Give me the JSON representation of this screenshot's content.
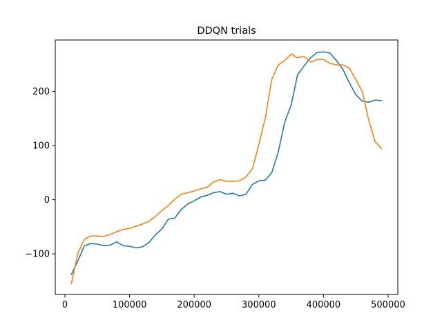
{
  "chart_data": {
    "type": "line",
    "title": "DDQN trials",
    "xlabel": "",
    "ylabel": "",
    "xlim": [
      -15000,
      515000
    ],
    "ylim": [
      -175,
      295
    ],
    "x_ticks": [
      0,
      100000,
      200000,
      300000,
      400000,
      500000
    ],
    "x_tick_labels": [
      "0",
      "100000",
      "200000",
      "300000",
      "400000",
      "500000"
    ],
    "y_ticks": [
      -100,
      0,
      100,
      200
    ],
    "y_tick_labels": [
      "−100",
      "0",
      "100",
      "200"
    ],
    "grid": false,
    "legend": "none",
    "x": [
      10000,
      20000,
      30000,
      40000,
      50000,
      60000,
      70000,
      80000,
      90000,
      100000,
      110000,
      120000,
      130000,
      140000,
      150000,
      160000,
      170000,
      180000,
      190000,
      200000,
      210000,
      220000,
      230000,
      240000,
      250000,
      260000,
      270000,
      280000,
      290000,
      300000,
      310000,
      320000,
      330000,
      340000,
      350000,
      360000,
      370000,
      380000,
      390000,
      400000,
      410000,
      420000,
      430000,
      440000,
      450000,
      460000,
      470000,
      480000,
      490000
    ],
    "series": [
      {
        "color": "#1f77b4",
        "values": [
          -138,
          -113,
          -85,
          -81,
          -82,
          -85,
          -84,
          -78,
          -85,
          -86,
          -89,
          -87,
          -79,
          -65,
          -54,
          -36,
          -34,
          -18,
          -8,
          -2,
          5,
          8,
          13,
          15,
          10,
          12,
          7,
          10,
          28,
          35,
          36,
          50,
          88,
          143,
          175,
          231,
          247,
          262,
          272,
          273,
          271,
          257,
          241,
          216,
          194,
          182,
          180,
          184,
          183
        ]
      },
      {
        "color": "#ff7f0e",
        "values": [
          -155,
          -99,
          -73,
          -67,
          -67,
          -68,
          -64,
          -59,
          -55,
          -53,
          -49,
          -45,
          -40,
          -31,
          -20,
          -11,
          1,
          10,
          13,
          16,
          20,
          23,
          33,
          37,
          34,
          34,
          35,
          42,
          57,
          102,
          151,
          222,
          249,
          257,
          269,
          262,
          265,
          254,
          259,
          259,
          252,
          249,
          249,
          243,
          222,
          200,
          147,
          107,
          94
        ]
      }
    ]
  }
}
